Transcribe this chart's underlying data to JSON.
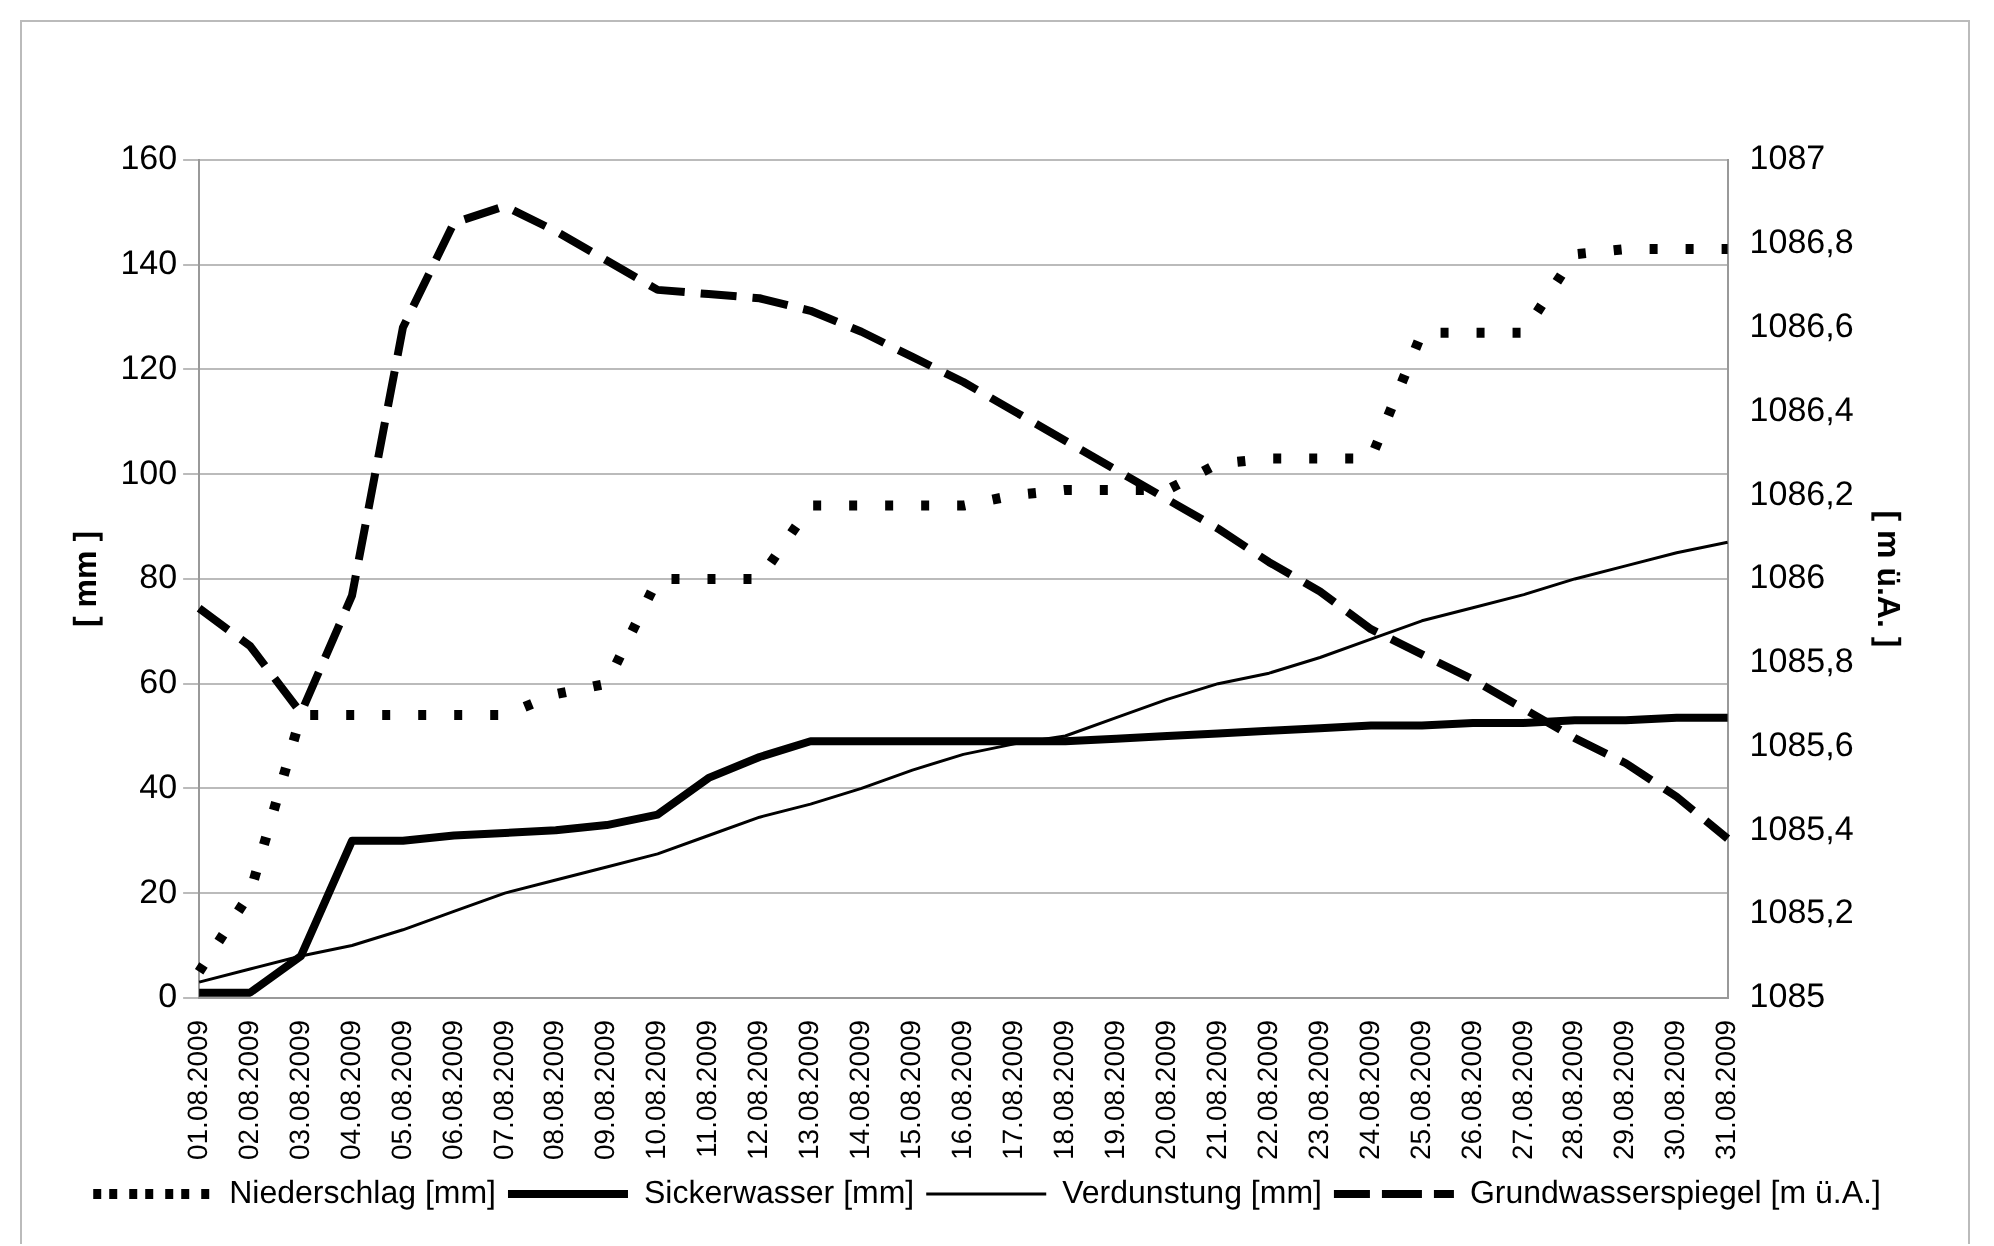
{
  "chart_data": {
    "type": "line",
    "ylabel": "[ mm ]",
    "y2label": "[ m ü.A. ]",
    "categories": [
      "01.08.2009",
      "02.08.2009",
      "03.08.2009",
      "04.08.2009",
      "05.08.2009",
      "06.08.2009",
      "07.08.2009",
      "08.08.2009",
      "09.08.2009",
      "10.08.2009",
      "11.08.2009",
      "12.08.2009",
      "13.08.2009",
      "14.08.2009",
      "15.08.2009",
      "16.08.2009",
      "17.08.2009",
      "18.08.2009",
      "19.08.2009",
      "20.08.2009",
      "21.08.2009",
      "22.08.2009",
      "23.08.2009",
      "24.08.2009",
      "25.08.2009",
      "26.08.2009",
      "27.08.2009",
      "28.08.2009",
      "29.08.2009",
      "30.08.2009",
      "31.08.2009"
    ],
    "series": [
      {
        "name": "Niederschlag [mm]",
        "color": "#000000",
        "line_style": "dotted",
        "values": [
          5,
          20,
          54,
          54,
          54,
          54,
          54,
          58,
          60,
          80,
          80,
          80,
          94,
          94,
          94,
          94,
          96,
          97,
          97,
          97,
          102,
          103,
          103,
          103,
          127,
          127,
          127,
          142,
          143,
          143,
          143
        ]
      },
      {
        "name": "Sickerwasser [mm]",
        "color": "#000000",
        "line_style": "solid",
        "values": [
          1,
          1,
          8,
          30,
          30,
          31,
          31.5,
          32,
          33,
          35,
          42,
          46,
          49,
          49,
          49,
          49,
          49,
          49,
          49.5,
          50,
          50.5,
          51,
          51.5,
          52,
          52,
          52.5,
          52.5,
          53,
          53,
          53.5,
          53.5
        ]
      },
      {
        "name": "Verdunstung [mm]",
        "color": "#000000",
        "line_style": "solid",
        "values": [
          3,
          5.5,
          8,
          10,
          13,
          16.5,
          20,
          22.5,
          25,
          27.5,
          31,
          34.5,
          37,
          40,
          43.5,
          46.5,
          48.5,
          50,
          53.5,
          57,
          60,
          62,
          65,
          68.5,
          72,
          74.5,
          77,
          80,
          82.5,
          85,
          87
        ]
      },
      {
        "name": "Grundwasserspiegel [m ü.A.]",
        "color": "#000000",
        "line_style": "dashed",
        "axis": "y2",
        "values": [
          1085.93,
          1085.84,
          1085.68,
          1085.96,
          1086.6,
          1086.85,
          1086.89,
          1086.83,
          1086.76,
          1086.69,
          1086.68,
          1086.67,
          1086.64,
          1086.59,
          1086.53,
          1086.47,
          1086.4,
          1086.33,
          1086.26,
          1086.19,
          1086.12,
          1086.04,
          1085.97,
          1085.88,
          1085.82,
          1085.76,
          1085.69,
          1085.62,
          1085.56,
          1085.48,
          1085.38
        ]
      }
    ],
    "ylim": [
      0,
      160
    ],
    "yticks": [
      0,
      20,
      40,
      60,
      80,
      100,
      120,
      140,
      160
    ],
    "y2lim": [
      1085,
      1087
    ],
    "y2ticks": [
      1085,
      {
        "value": 1085.2,
        "label": "1085,2"
      },
      {
        "value": 1085.4,
        "label": "1085,4"
      },
      {
        "value": 1085.6,
        "label": "1085,6"
      },
      {
        "value": 1085.8,
        "label": "1085,8"
      },
      1086,
      {
        "value": 1086.2,
        "label": "1086,2"
      },
      {
        "value": 1086.4,
        "label": "1086,4"
      },
      {
        "value": 1086.6,
        "label": "1086,6"
      },
      {
        "value": 1086.8,
        "label": "1086,8"
      },
      1087
    ],
    "grid": "y",
    "legend": "bottom",
    "marker": "none"
  }
}
